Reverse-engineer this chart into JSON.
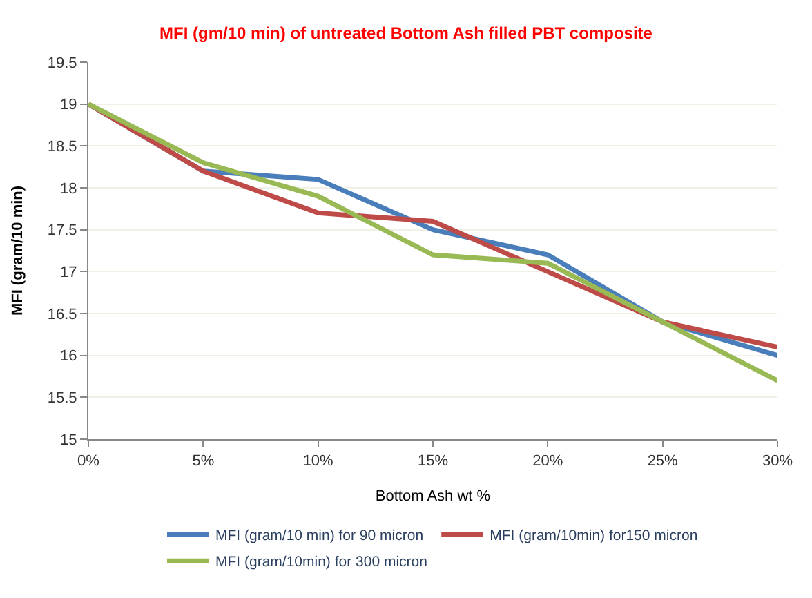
{
  "chart_data": {
    "type": "line",
    "title": "MFI (gm/10 min) of untreated Bottom Ash filled PBT composite",
    "xlabel": "Bottom Ash wt %",
    "ylabel": "MFI (gram/10 min)",
    "x": [
      0,
      5,
      10,
      15,
      20,
      25,
      30
    ],
    "xlim": [
      0,
      30
    ],
    "xticks": [
      {
        "value": 0,
        "label": "0%"
      },
      {
        "value": 5,
        "label": "5%"
      },
      {
        "value": 10,
        "label": "10%"
      },
      {
        "value": 15,
        "label": "15%"
      },
      {
        "value": 20,
        "label": "20%"
      },
      {
        "value": 25,
        "label": "25%"
      },
      {
        "value": 30,
        "label": "30%"
      }
    ],
    "ylim": [
      15,
      19.5
    ],
    "yticks": [
      15,
      15.5,
      16,
      16.5,
      17,
      17.5,
      18,
      18.5,
      19,
      19.5
    ],
    "grid": "y",
    "legend": "bottom",
    "marker": "none",
    "line_style": "solid",
    "series": [
      {
        "name": "MFI (gram/10 min) for 90 micron",
        "color": "#4a7ebb",
        "values": [
          19,
          18.2,
          18.1,
          17.5,
          17.2,
          16.4,
          16.0
        ]
      },
      {
        "name": "MFI (gram/10min) for150 micron",
        "color": "#be4b48",
        "values": [
          19,
          18.2,
          17.7,
          17.6,
          17.0,
          16.4,
          16.1
        ]
      },
      {
        "name": "MFI (gram/10min) for 300 micron",
        "color": "#98b954",
        "values": [
          19,
          18.3,
          17.9,
          17.2,
          17.1,
          16.4,
          15.7
        ]
      }
    ]
  }
}
